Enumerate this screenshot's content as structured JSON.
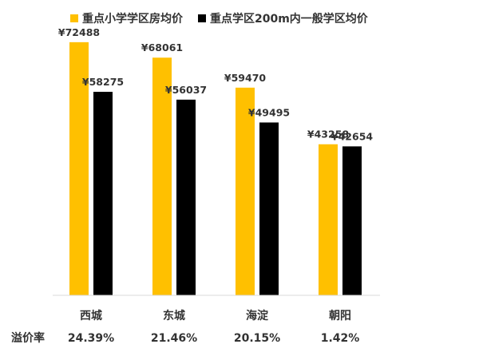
{
  "chart_data": {
    "type": "bar",
    "categories": [
      "西城",
      "东城",
      "海淀",
      "朝阳"
    ],
    "series": [
      {
        "name": "重点小学学区房均价",
        "color": "#FFC000",
        "values": [
          72488,
          68061,
          59470,
          43258
        ],
        "labels": [
          "¥72488",
          "¥68061",
          "¥59470",
          "¥43258"
        ]
      },
      {
        "name": "重点学区200m内一般学区均价",
        "color": "#000000",
        "values": [
          58275,
          56037,
          49495,
          42654
        ],
        "labels": [
          "¥58275",
          "¥56037",
          "¥49495",
          "¥42654"
        ]
      }
    ],
    "ylim": [
      0,
      80000
    ],
    "legend_position": "top",
    "premium_row": {
      "label": "溢价率",
      "values": [
        "24.39%",
        "21.46%",
        "20.15%",
        "1.42%"
      ]
    }
  }
}
